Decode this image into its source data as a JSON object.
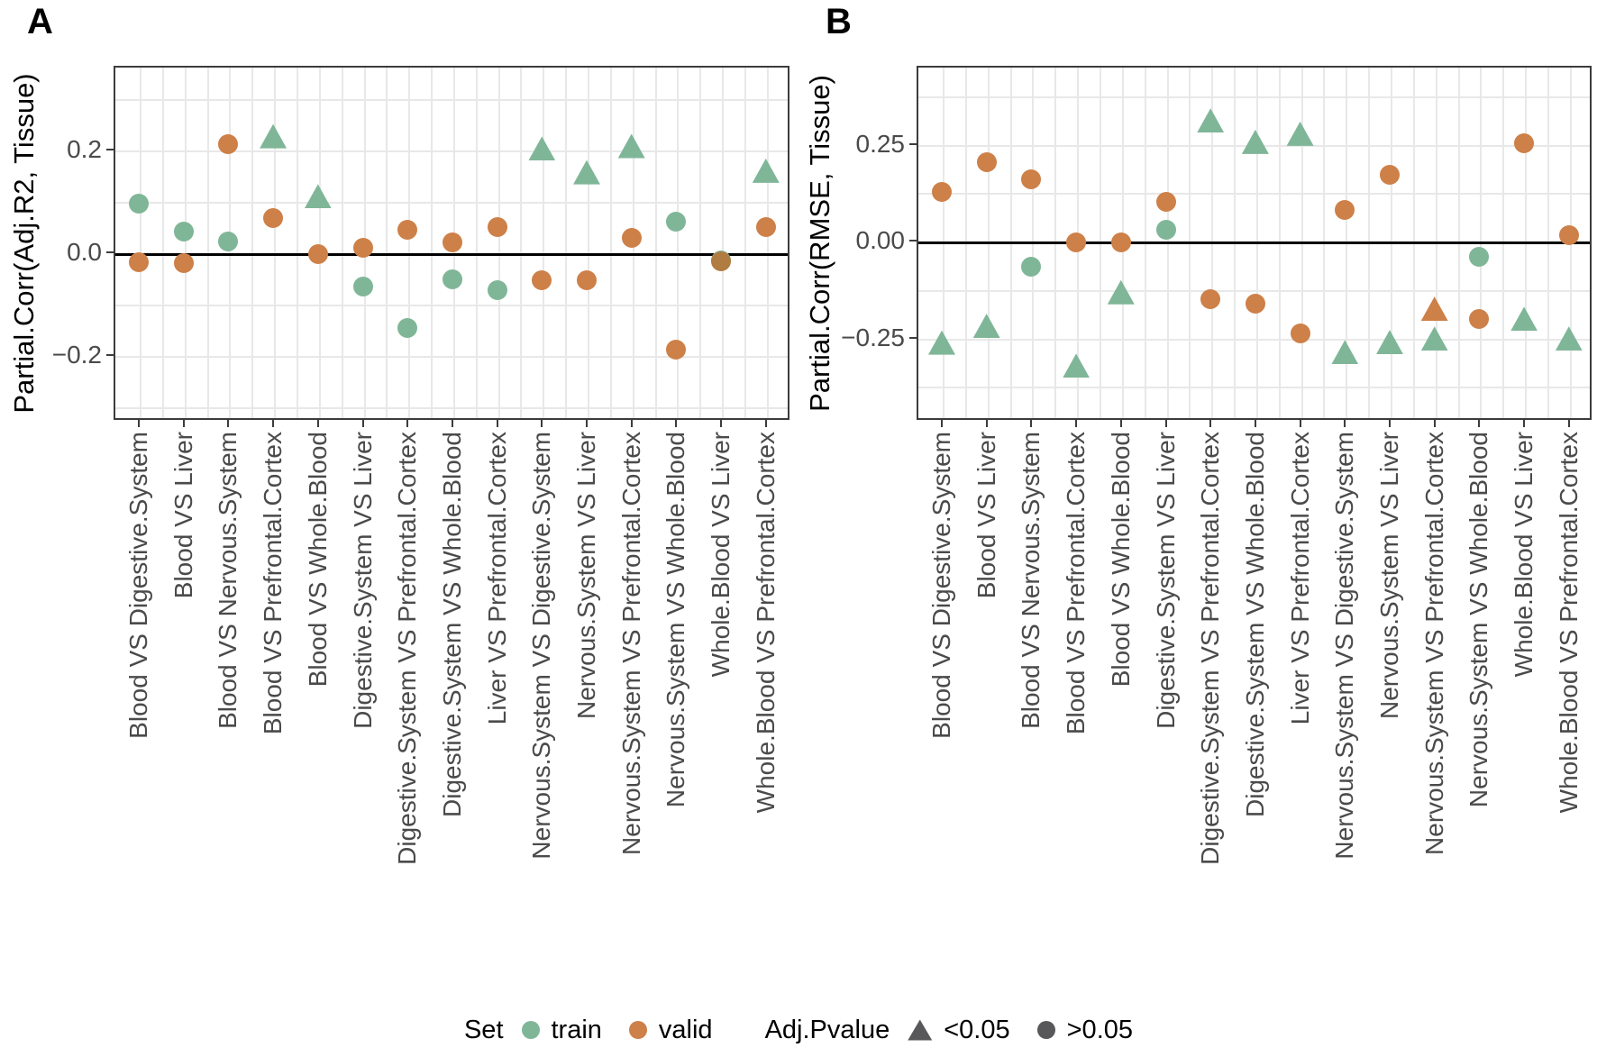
{
  "colors": {
    "train": "#80b698",
    "valid": "#cd8048",
    "overlap": "#b07c42",
    "legend_glyph": "#58585a",
    "gridline": "#e8e8e8",
    "axis_text": "#4a4a4a",
    "axis_title": "#000000",
    "zero_line": "#000000",
    "panel_border": "#3c3c3c",
    "background": "#ffffff"
  },
  "legend": {
    "set": {
      "label": "Set",
      "items": [
        {
          "label": "train",
          "shape": "circle",
          "color_key": "train"
        },
        {
          "label": "valid",
          "shape": "circle",
          "color_key": "valid"
        }
      ]
    },
    "pvalue": {
      "label": "Adj.Pvalue",
      "items": [
        {
          "label": "<0.05",
          "shape": "triangle"
        },
        {
          "label": ">0.05",
          "shape": "circle"
        }
      ]
    }
  },
  "chart_data": [
    {
      "id": "A",
      "panel_label": "A",
      "type": "scatter",
      "ylabel": "Partial.Corr(Adj.R2, Tissue)",
      "xlabel": "",
      "ylim": [
        -0.32,
        0.36
      ],
      "grid_step": 0.1,
      "grid": true,
      "legend_position": "bottom",
      "yticks": [
        {
          "value": 0.2,
          "label": "0.2"
        },
        {
          "value": 0.0,
          "label": "0.0"
        },
        {
          "value": -0.2,
          "label": "−0.2"
        }
      ],
      "categories": [
        "Blood VS Digestive.System",
        "Blood VS Liver",
        "Blood VS Nervous.System",
        "Blood VS Prefrontal.Cortex",
        "Blood VS Whole.Blood",
        "Digestive.System VS Liver",
        "Digestive.System VS Prefrontal.Cortex",
        "Digestive.System VS Whole.Blood",
        "Liver VS Prefrontal.Cortex",
        "Nervous.System VS Digestive.System",
        "Nervous.System VS Liver",
        "Nervous.System VS Prefrontal.Cortex",
        "Nervous.System VS Whole.Blood",
        "Whole.Blood VS Liver",
        "Whole.Blood VS Prefrontal.Cortex"
      ],
      "series": [
        {
          "name": "train",
          "values": [
            0.095,
            0.04,
            0.021,
            0.226,
            0.109,
            -0.066,
            -0.147,
            -0.053,
            -0.074,
            0.202,
            0.156,
            0.207,
            0.059,
            -0.015,
            0.159
          ],
          "shapes": [
            "circle",
            "circle",
            "circle",
            "triangle",
            "triangle",
            "circle",
            "circle",
            "circle",
            "circle",
            "triangle",
            "triangle",
            "triangle",
            "circle",
            "circle",
            "triangle"
          ]
        },
        {
          "name": "valid",
          "values": [
            -0.019,
            -0.021,
            0.211,
            0.067,
            -0.003,
            0.008,
            0.043,
            0.019,
            0.05,
            -0.054,
            -0.055,
            0.028,
            -0.19,
            -0.018,
            0.049
          ],
          "shapes": [
            "circle",
            "circle",
            "circle",
            "circle",
            "circle",
            "circle",
            "circle",
            "circle",
            "circle",
            "circle",
            "circle",
            "circle",
            "circle",
            "circle",
            "circle"
          ]
        }
      ],
      "overlap_categories": [
        13
      ]
    },
    {
      "id": "B",
      "panel_label": "B",
      "type": "scatter",
      "ylabel": "Partial.Corr(RMSE, Tissue)",
      "xlabel": "",
      "ylim": [
        -0.46,
        0.45
      ],
      "grid_step": 0.125,
      "grid": true,
      "legend_position": "bottom",
      "yticks": [
        {
          "value": 0.25,
          "label": "0.25"
        },
        {
          "value": 0.0,
          "label": "0.00"
        },
        {
          "value": -0.25,
          "label": "−0.25"
        }
      ],
      "categories": [
        "Blood VS Digestive.System",
        "Blood VS Liver",
        "Blood VS Nervous.System",
        "Blood VS Prefrontal.Cortex",
        "Blood VS Whole.Blood",
        "Digestive.System VS Liver",
        "Digestive.System VS Prefrontal.Cortex",
        "Digestive.System VS Whole.Blood",
        "Liver VS Prefrontal.Cortex",
        "Nervous.System VS Digestive.System",
        "Nervous.System VS Liver",
        "Nervous.System VS Prefrontal.Cortex",
        "Nervous.System VS Whole.Blood",
        "Whole.Blood VS Liver",
        "Whole.Blood VS Prefrontal.Cortex"
      ],
      "series": [
        {
          "name": "train",
          "values": [
            -0.263,
            -0.22,
            -0.067,
            -0.323,
            -0.133,
            0.029,
            0.31,
            0.255,
            0.276,
            -0.288,
            -0.262,
            -0.253,
            -0.041,
            -0.202,
            -0.253
          ],
          "shapes": [
            "triangle",
            "triangle",
            "circle",
            "triangle",
            "triangle",
            "circle",
            "triangle",
            "triangle",
            "triangle",
            "triangle",
            "triangle",
            "triangle",
            "circle",
            "triangle",
            "triangle"
          ]
        },
        {
          "name": "valid",
          "values": [
            0.126,
            0.203,
            0.157,
            -0.004,
            -0.004,
            0.099,
            -0.151,
            -0.162,
            -0.24,
            0.078,
            0.17,
            -0.176,
            -0.202,
            0.251,
            0.014
          ],
          "shapes": [
            "circle",
            "circle",
            "circle",
            "circle",
            "circle",
            "circle",
            "circle",
            "circle",
            "circle",
            "circle",
            "circle",
            "triangle",
            "circle",
            "circle",
            "circle"
          ]
        }
      ],
      "overlap_categories": []
    }
  ]
}
